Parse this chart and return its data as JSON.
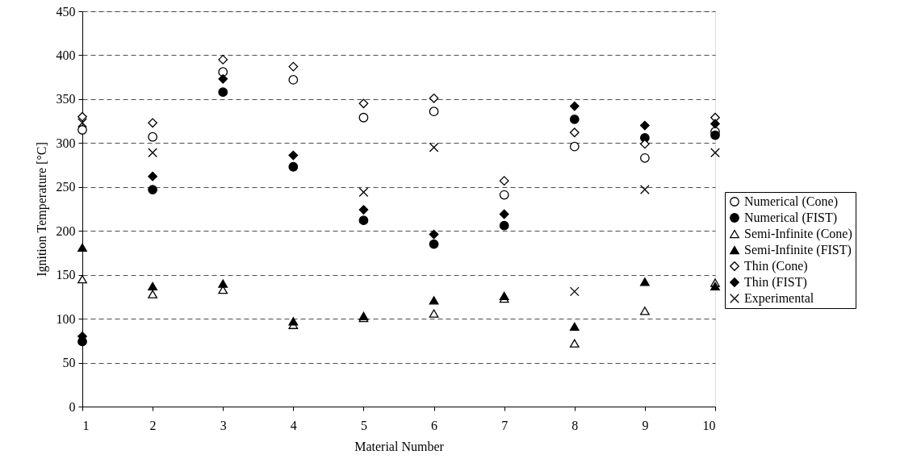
{
  "chart_data": {
    "type": "scatter",
    "xlabel": "Material Number",
    "ylabel": "Ignition Temperature [°C]",
    "x": [
      1,
      2,
      3,
      4,
      5,
      6,
      7,
      8,
      9,
      10
    ],
    "xlim": [
      1,
      10
    ],
    "xticks": [
      1,
      2,
      3,
      4,
      5,
      6,
      7,
      8,
      9,
      10
    ],
    "ylim": [
      0,
      450
    ],
    "yticks": [
      0,
      50,
      100,
      150,
      200,
      250,
      300,
      350,
      400,
      450
    ],
    "grid": "y",
    "legend": "right",
    "series": [
      {
        "name": "Numerical (Cone)",
        "color": "#ffffff",
        "marker": "circle",
        "values": [
          315,
          307,
          381,
          372,
          329,
          336,
          241,
          296,
          283,
          313
        ]
      },
      {
        "name": "Numerical (FIST)",
        "color": "#000000",
        "marker": "circle",
        "values": [
          74,
          247,
          358,
          273,
          212,
          185,
          206,
          327,
          306,
          309
        ]
      },
      {
        "name": "Semi-Infinite (Cone)",
        "color": "#ffffff",
        "marker": "triangle",
        "values": [
          145,
          128,
          133,
          93,
          101,
          106,
          123,
          72,
          109,
          141
        ]
      },
      {
        "name": "Semi-Infinite (FIST)",
        "color": "#000000",
        "marker": "triangle",
        "values": [
          181,
          137,
          140,
          97,
          103,
          121,
          126,
          91,
          142,
          137
        ]
      },
      {
        "name": "Thin (Cone)",
        "color": "#ffffff",
        "marker": "diamond",
        "values": [
          330,
          323,
          395,
          387,
          345,
          351,
          257,
          312,
          299,
          329
        ]
      },
      {
        "name": "Thin (FIST)",
        "color": "#000000",
        "marker": "diamond",
        "values": [
          80,
          262,
          373,
          286,
          224,
          196,
          219,
          342,
          320,
          322
        ]
      },
      {
        "name": "Experimental",
        "color": "#000000",
        "marker": "cross",
        "values": [
          323,
          289,
          null,
          null,
          244,
          295,
          null,
          131,
          247,
          289
        ]
      }
    ]
  }
}
